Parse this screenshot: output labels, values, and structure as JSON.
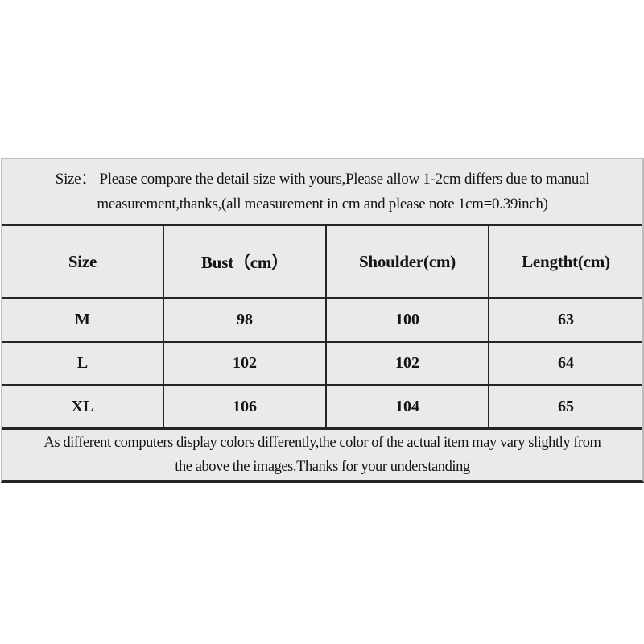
{
  "size_chart": {
    "top_note": {
      "lines": [
        "Size：  Please compare the detail size with yours,Please allow 1-2cm differs due to manual",
        "measurement,thanks,(all measurement in cm and please note 1cm=0.39inch)"
      ]
    },
    "columns": [
      "Size",
      "Bust（cm）",
      "Shoulder(cm)",
      "Lengtht(cm)"
    ],
    "rows": [
      {
        "size": "M",
        "bust": "98",
        "shoulder": "100",
        "length": "63"
      },
      {
        "size": "L",
        "bust": "102",
        "shoulder": "102",
        "length": "64"
      },
      {
        "size": "XL",
        "bust": "106",
        "shoulder": "104",
        "length": "65"
      }
    ],
    "bottom_note": {
      "lines": [
        "As different computers display colors differently,the color of the actual item may vary slightly from",
        "the above the images.Thanks for your understanding"
      ]
    },
    "colors": {
      "cell_background": "#eaeaea",
      "border_dark": "#262626",
      "border_light": "#bdbdbd",
      "text": "#141414",
      "page_background": "#ffffff"
    }
  }
}
